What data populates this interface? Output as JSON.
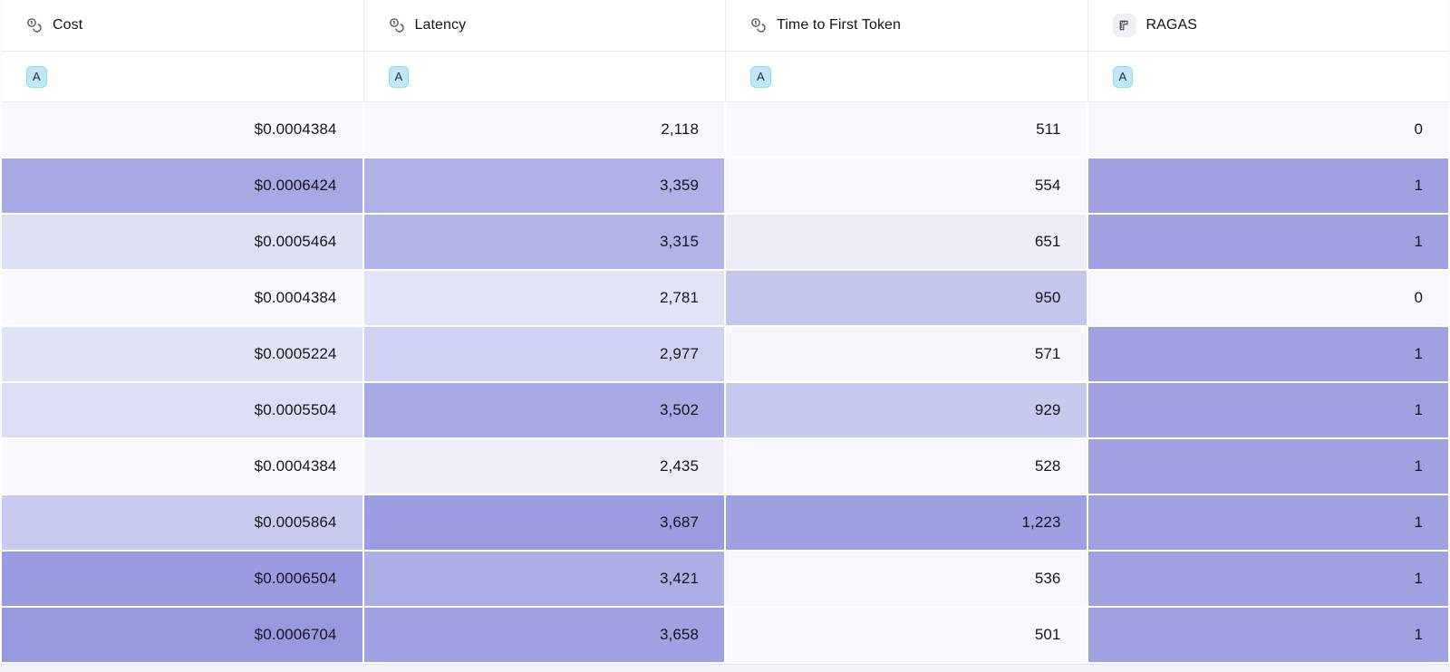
{
  "table": {
    "columns": [
      {
        "key": "cost",
        "label": "Cost",
        "icon": "coins-icon"
      },
      {
        "key": "latency",
        "label": "Latency",
        "icon": "coins-icon"
      },
      {
        "key": "time-to-first-token",
        "label": "Time to First Token",
        "icon": "coins-icon"
      },
      {
        "key": "ragas",
        "label": "RAGAS",
        "icon": "ruler-icon"
      }
    ],
    "variant_badge": {
      "label": "A",
      "bg": "#bfe7f8",
      "border": "#97d7f1"
    },
    "rows": [
      {
        "cells": [
          {
            "text": "$0.0004384",
            "bg": "#f9f9fd"
          },
          {
            "text": "2,118",
            "bg": "#f9f9fd"
          },
          {
            "text": "511",
            "bg": "#fafafd"
          },
          {
            "text": "0",
            "bg": "#f8f8fc"
          }
        ]
      },
      {
        "cells": [
          {
            "text": "$0.0006424",
            "bg": "#a6a9e4"
          },
          {
            "text": "3,359",
            "bg": "#b0b2e7"
          },
          {
            "text": "554",
            "bg": "#f7f7fc"
          },
          {
            "text": "1",
            "bg": "#9fa1e1"
          }
        ]
      },
      {
        "cells": [
          {
            "text": "$0.0005464",
            "bg": "#dee0f6"
          },
          {
            "text": "3,315",
            "bg": "#b2b4e8"
          },
          {
            "text": "651",
            "bg": "#eaecf8"
          },
          {
            "text": "1",
            "bg": "#9fa1e1"
          }
        ]
      },
      {
        "cells": [
          {
            "text": "$0.0004384",
            "bg": "#fafafd"
          },
          {
            "text": "2,781",
            "bg": "#e2e4f7"
          },
          {
            "text": "950",
            "bg": "#c4c6ee"
          },
          {
            "text": "0",
            "bg": "#f8f8fc"
          }
        ]
      },
      {
        "cells": [
          {
            "text": "$0.0005224",
            "bg": "#e1e3f6"
          },
          {
            "text": "2,977",
            "bg": "#cfd2f1"
          },
          {
            "text": "571",
            "bg": "#f6f6fb"
          },
          {
            "text": "1",
            "bg": "#9fa1e1"
          }
        ]
      },
      {
        "cells": [
          {
            "text": "$0.0005504",
            "bg": "#dcdef5"
          },
          {
            "text": "3,502",
            "bg": "#a7aae4"
          },
          {
            "text": "929",
            "bg": "#c7c9ef"
          },
          {
            "text": "1",
            "bg": "#9fa1e1"
          }
        ]
      },
      {
        "cells": [
          {
            "text": "$0.0004384",
            "bg": "#fafafd"
          },
          {
            "text": "2,435",
            "bg": "#edeef9"
          },
          {
            "text": "528",
            "bg": "#f8f8fd"
          },
          {
            "text": "1",
            "bg": "#9fa1e1"
          }
        ]
      },
      {
        "cells": [
          {
            "text": "$0.0005864",
            "bg": "#c8caf0"
          },
          {
            "text": "3,687",
            "bg": "#9b9de0"
          },
          {
            "text": "1,223",
            "bg": "#9da0e1"
          },
          {
            "text": "1",
            "bg": "#9fa1e1"
          }
        ]
      },
      {
        "cells": [
          {
            "text": "$0.0006504",
            "bg": "#999ce0"
          },
          {
            "text": "3,421",
            "bg": "#acaee6"
          },
          {
            "text": "536",
            "bg": "#f8f8fc"
          },
          {
            "text": "1",
            "bg": "#9fa1e1"
          }
        ]
      },
      {
        "cells": [
          {
            "text": "$0.0006704",
            "bg": "#9699df"
          },
          {
            "text": "3,658",
            "bg": "#9fa1e2"
          },
          {
            "text": "501",
            "bg": "#fafafd"
          },
          {
            "text": "1",
            "bg": "#9fa1e1"
          }
        ]
      }
    ]
  }
}
